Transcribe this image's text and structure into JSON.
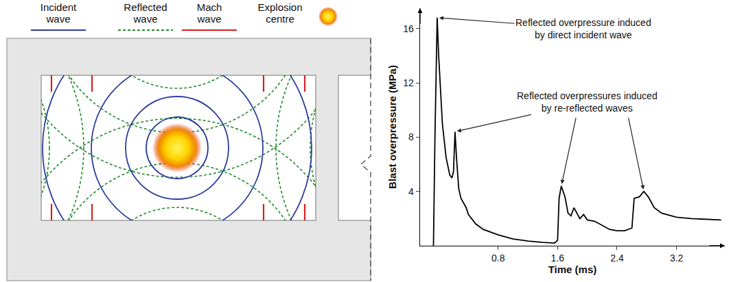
{
  "diagram": {
    "legend": [
      {
        "label": "Incident wave",
        "color": "#2e3d9c",
        "line_style": "solid"
      },
      {
        "label": "Reflected wave",
        "color": "#1f8a2a",
        "line_style": "dotted"
      },
      {
        "label": "Mach wave",
        "color": "#d42020",
        "line_style": "solid"
      },
      {
        "label": "Explosion centre",
        "color": "#f08a00",
        "marker": "glow"
      }
    ]
  },
  "chart_data": {
    "type": "line",
    "xlabel": "Time (ms)",
    "ylabel": "Blast overpressure (MPa)",
    "x": [
      -0.07,
      -0.05,
      -0.02,
      0.0,
      0.05,
      0.1,
      0.15,
      0.18,
      0.2,
      0.22,
      0.24,
      0.27,
      0.3,
      0.33,
      0.35,
      0.37,
      0.4,
      0.5,
      0.6,
      0.8,
      1.0,
      1.2,
      1.4,
      1.56,
      1.6,
      1.62,
      1.65,
      1.7,
      1.74,
      1.78,
      1.82,
      1.86,
      1.9,
      1.95,
      2.0,
      2.1,
      2.2,
      2.3,
      2.4,
      2.5,
      2.6,
      2.63,
      2.7,
      2.76,
      2.82,
      2.9,
      3.0,
      3.2,
      3.4,
      3.6,
      3.8
    ],
    "values": [
      0,
      8,
      16.8,
      14,
      9,
      6.5,
      5.2,
      5.0,
      5.5,
      8.4,
      6.5,
      4.2,
      3.5,
      3.2,
      3.0,
      2.8,
      2.3,
      1.6,
      1.2,
      0.8,
      0.5,
      0.35,
      0.25,
      0.2,
      0.4,
      3.5,
      4.4,
      3.6,
      2.4,
      2.2,
      2.8,
      2.4,
      2.0,
      2.3,
      1.9,
      1.8,
      1.5,
      1.2,
      1.1,
      1.1,
      1.3,
      3.5,
      3.6,
      4.0,
      3.6,
      2.8,
      2.4,
      2.1,
      2.0,
      1.95,
      1.9
    ],
    "color": "#000000",
    "xlim": [
      -0.25,
      3.85
    ],
    "ylim": [
      0,
      17.5
    ],
    "xticks": [
      0.8,
      1.6,
      2.4,
      3.2
    ],
    "yticks": [
      4,
      8,
      12,
      16
    ],
    "grid": false,
    "annotations": [
      {
        "text": "Reflected overpressure induced by direct incident wave",
        "points": [
          {
            "x": -0.02,
            "y": 16.8
          }
        ]
      },
      {
        "text": "Reflected overpressures induced by re-reflected waves",
        "points": [
          {
            "x": 0.22,
            "y": 8.4
          },
          {
            "x": 1.65,
            "y": 4.4
          },
          {
            "x": 2.76,
            "y": 4.0
          }
        ]
      }
    ]
  }
}
